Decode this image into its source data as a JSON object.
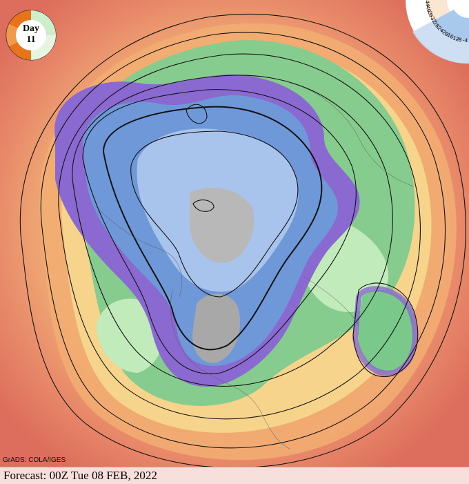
{
  "badge": {
    "label": "Day",
    "number": "11"
  },
  "scale": {
    "ticks": [
      "-4",
      "-8",
      "-12",
      "-16",
      "-20",
      "-24",
      "-28",
      "-32",
      "-36",
      "-40",
      "-44"
    ]
  },
  "credit": "GrADS: COLA/IGES",
  "forecast": "Forecast: 00Z Tue 08 FEB, 2022",
  "colors": {
    "warm": "#e07860",
    "orange": "#f0a868",
    "yellow": "#f6d890",
    "green": "#7ac88a",
    "light_green": "#bfe8b8",
    "blue": "#6e98d8",
    "light_blue": "#a8c4ec",
    "purple": "#8a6ad0",
    "gray": "#b4b4b4"
  }
}
